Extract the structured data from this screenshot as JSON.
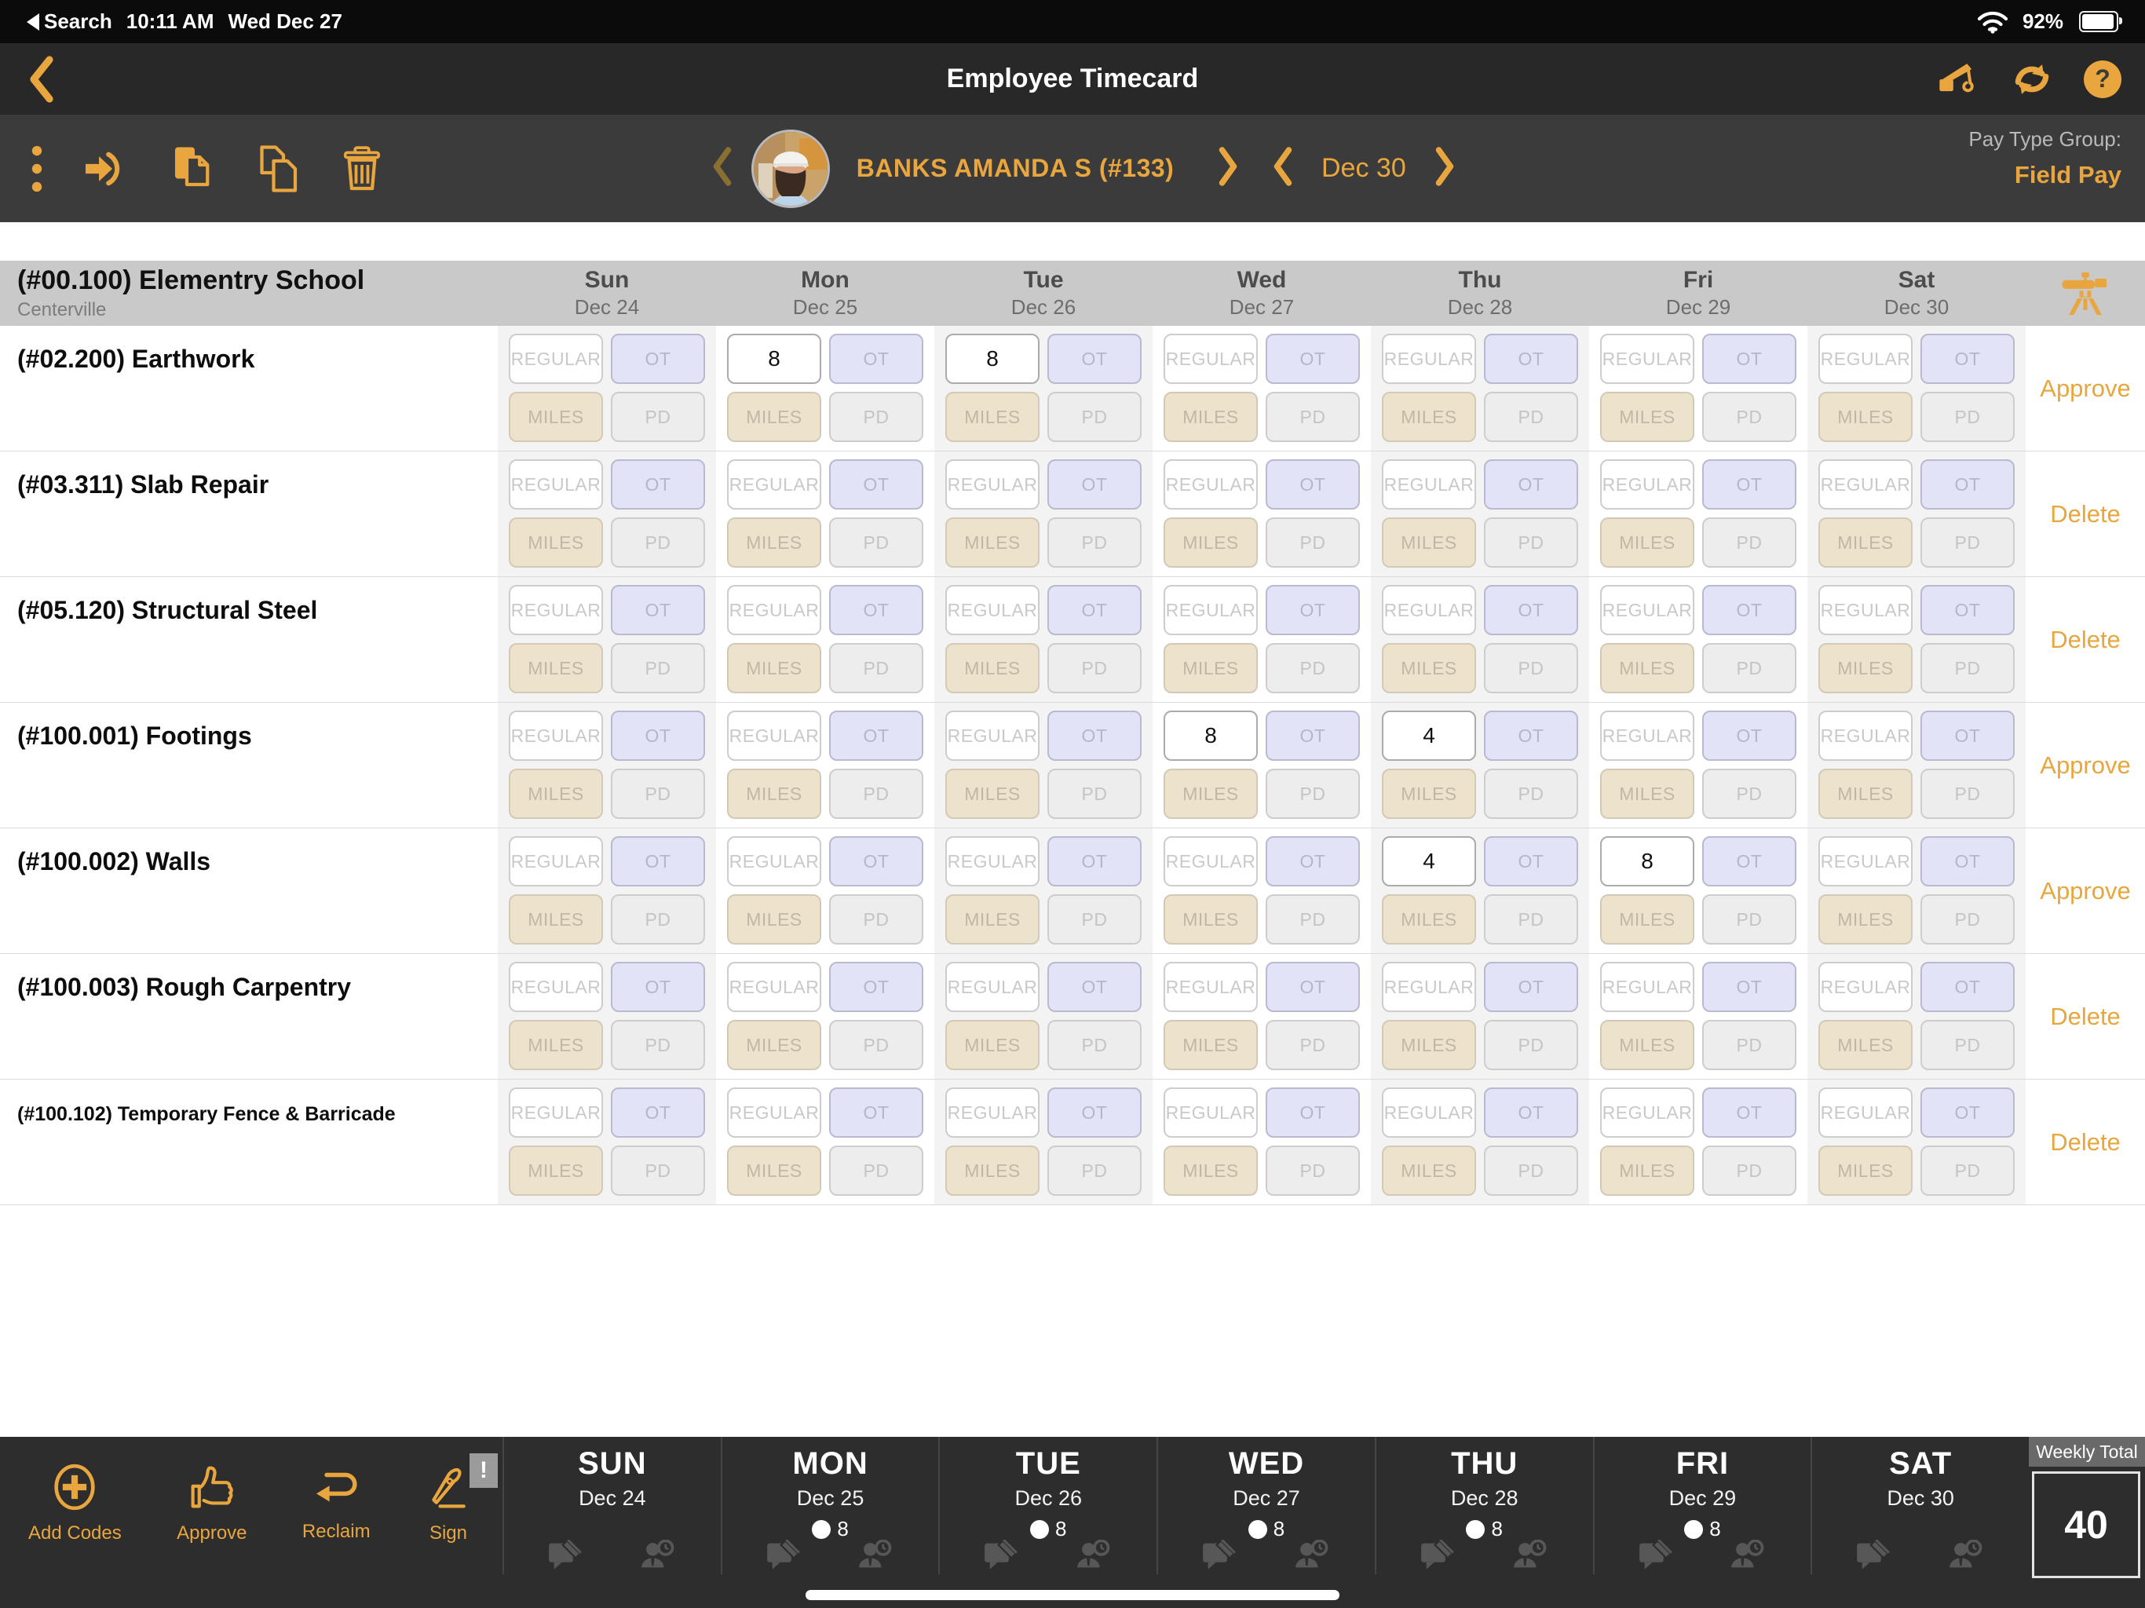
{
  "status_bar": {
    "back_app": "Search",
    "time": "10:11 AM",
    "date": "Wed Dec 27",
    "battery_pct": "92%"
  },
  "nav": {
    "title": "Employee Timecard"
  },
  "toolbar": {
    "employee_name": "BANKS AMANDA S (#133)",
    "week_date": "Dec 30",
    "pay_group_label": "Pay Type Group:",
    "pay_group_value": "Field Pay"
  },
  "accent_color": "#E9A63E",
  "table": {
    "job_code_name": "(#00.100) Elementry School",
    "job_location": "Centerville",
    "days": [
      {
        "day": "Sun",
        "date": "Dec 24"
      },
      {
        "day": "Mon",
        "date": "Dec 25"
      },
      {
        "day": "Tue",
        "date": "Dec 26"
      },
      {
        "day": "Wed",
        "date": "Dec 27"
      },
      {
        "day": "Thu",
        "date": "Dec 28"
      },
      {
        "day": "Fri",
        "date": "Dec 29"
      },
      {
        "day": "Sat",
        "date": "Dec 30"
      }
    ],
    "placeholders": {
      "regular": "REGULAR",
      "ot": "OT",
      "miles": "MILES",
      "pd": "PD"
    },
    "rows": [
      {
        "label": "(#02.200) Earthwork",
        "action": "Approve",
        "small": false,
        "hours": [
          "",
          "8",
          "8",
          "",
          "",
          "",
          ""
        ]
      },
      {
        "label": "(#03.311) Slab Repair",
        "action": "Delete",
        "small": false,
        "hours": [
          "",
          "",
          "",
          "",
          "",
          "",
          ""
        ]
      },
      {
        "label": "(#05.120) Structural Steel",
        "action": "Delete",
        "small": false,
        "hours": [
          "",
          "",
          "",
          "",
          "",
          "",
          ""
        ]
      },
      {
        "label": "(#100.001) Footings",
        "action": "Approve",
        "small": false,
        "hours": [
          "",
          "",
          "",
          "8",
          "4",
          "",
          ""
        ]
      },
      {
        "label": "(#100.002) Walls",
        "action": "Approve",
        "small": false,
        "hours": [
          "",
          "",
          "",
          "",
          "4",
          "8",
          ""
        ]
      },
      {
        "label": "(#100.003) Rough Carpentry",
        "action": "Delete",
        "small": false,
        "hours": [
          "",
          "",
          "",
          "",
          "",
          "",
          ""
        ]
      },
      {
        "label": "(#100.102) Temporary Fence & Barricade",
        "action": "Delete",
        "small": true,
        "hours": [
          "",
          "",
          "",
          "",
          "",
          "",
          ""
        ]
      }
    ]
  },
  "bottom": {
    "actions": [
      {
        "label": "Add Codes"
      },
      {
        "label": "Approve"
      },
      {
        "label": "Reclaim"
      },
      {
        "label": "Sign",
        "badge": "!"
      }
    ],
    "days": [
      {
        "day": "SUN",
        "date": "Dec 24",
        "total": ""
      },
      {
        "day": "MON",
        "date": "Dec 25",
        "total": "8"
      },
      {
        "day": "TUE",
        "date": "Dec 26",
        "total": "8"
      },
      {
        "day": "WED",
        "date": "Dec 27",
        "total": "8"
      },
      {
        "day": "THU",
        "date": "Dec 28",
        "total": "8"
      },
      {
        "day": "FRI",
        "date": "Dec 29",
        "total": "8"
      },
      {
        "day": "SAT",
        "date": "Dec 30",
        "total": ""
      }
    ],
    "weekly_total_label": "Weekly Total",
    "weekly_total_value": "40"
  }
}
